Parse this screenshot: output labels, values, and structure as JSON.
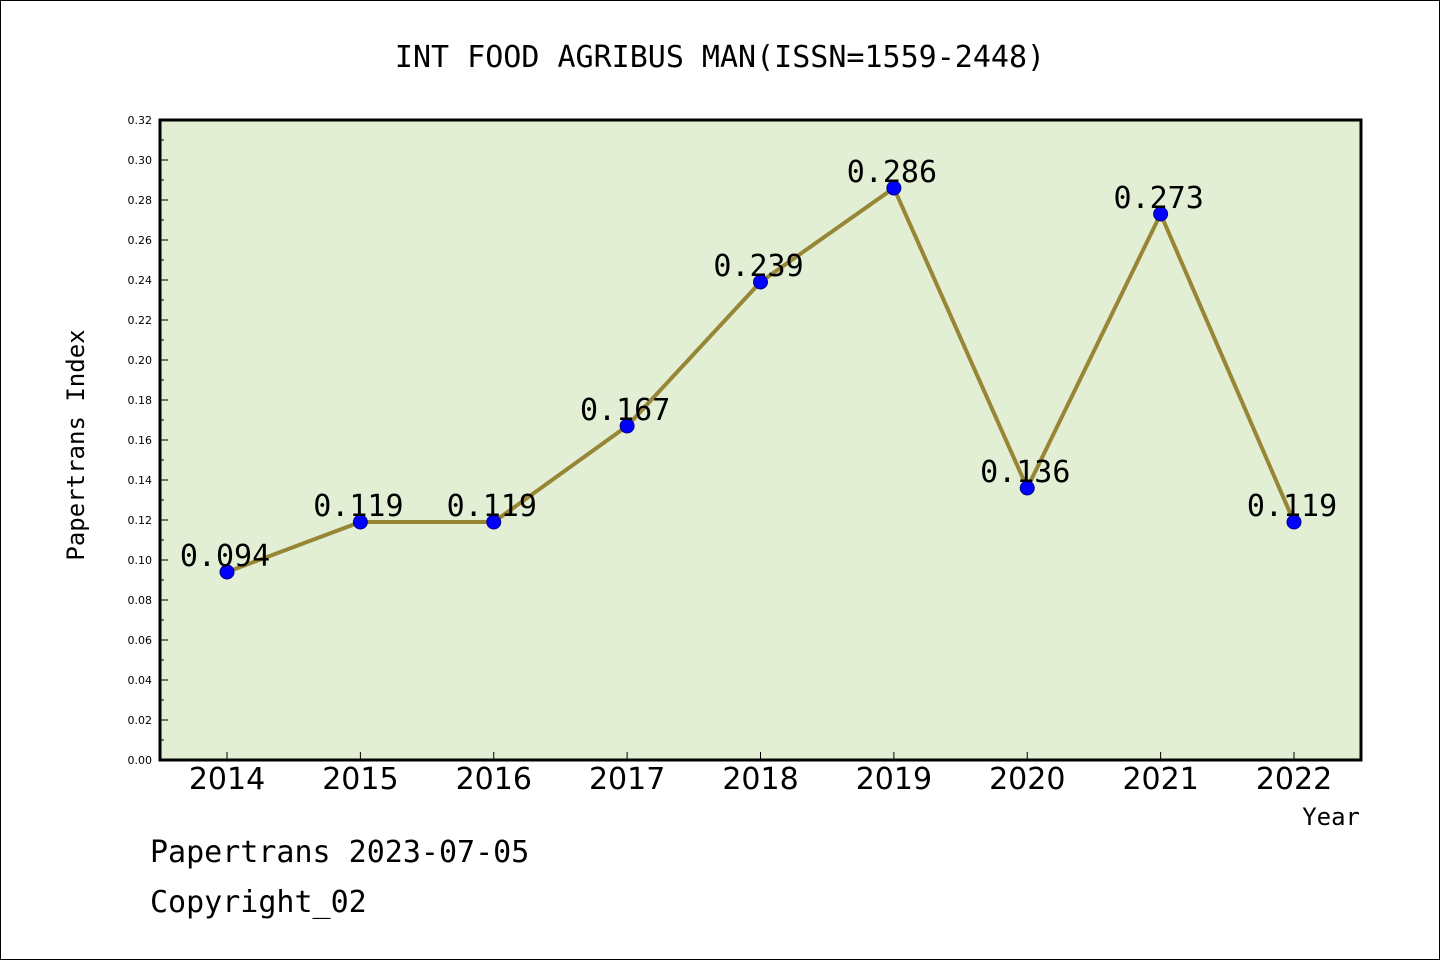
{
  "chart_data": {
    "type": "line",
    "title": "INT FOOD AGRIBUS MAN(ISSN=1559-2448)",
    "xlabel": "Year",
    "ylabel": "Papertrans Index",
    "categories": [
      "2014",
      "2015",
      "2016",
      "2017",
      "2018",
      "2019",
      "2020",
      "2021",
      "2022"
    ],
    "series": [
      {
        "values": [
          0.094,
          0.119,
          0.119,
          0.167,
          0.239,
          0.286,
          0.136,
          0.273,
          0.119
        ]
      }
    ],
    "data_labels": [
      "0.094",
      "0.119",
      "0.119",
      "0.167",
      "0.239",
      "0.286",
      "0.136",
      "0.273",
      "0.119"
    ],
    "ylim": [
      0,
      0.32
    ],
    "ytick_labels": [
      "0.00",
      "0.02",
      "0.04",
      "0.06",
      "0.08",
      "0.10",
      "0.12",
      "0.14",
      "0.16",
      "0.18",
      "0.20",
      "0.22",
      "0.24",
      "0.26",
      "0.28",
      "0.30",
      "0.32"
    ],
    "grid": false,
    "legend": "none",
    "colors": {
      "plot_background": "#e2efd4",
      "line": "#978635",
      "marker": "#0000ff"
    }
  },
  "footer": {
    "date_line": "Papertrans 2023-07-05",
    "copyright": "Copyright_02"
  }
}
